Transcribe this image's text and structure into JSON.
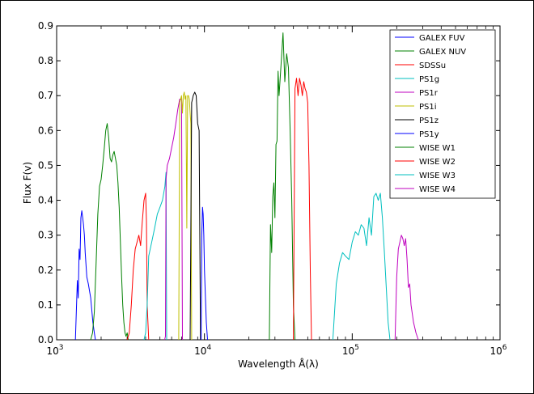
{
  "chart_data": {
    "type": "line",
    "title": "",
    "xlabel": "Wavelength Å(λ)",
    "ylabel": "Flux F(v)",
    "xscale": "log",
    "xlim": [
      1000,
      1000000
    ],
    "ylim": [
      0,
      0.9
    ],
    "x_ticks": [
      1000,
      10000,
      100000,
      1000000
    ],
    "x_tick_labels": [
      {
        "base": "10",
        "exp": "3"
      },
      {
        "base": "10",
        "exp": "4"
      },
      {
        "base": "10",
        "exp": "5"
      },
      {
        "base": "10",
        "exp": "6"
      }
    ],
    "y_ticks": [
      0.0,
      0.1,
      0.2,
      0.3,
      0.4,
      0.5,
      0.6,
      0.7,
      0.8,
      0.9
    ],
    "y_tick_labels": [
      "0.0",
      "0.1",
      "0.2",
      "0.3",
      "0.4",
      "0.5",
      "0.6",
      "0.7",
      "0.8",
      "0.9"
    ],
    "grid": false,
    "legend_position": "top-right",
    "series": [
      {
        "name": "GALEX FUV",
        "color": "#0000ff",
        "x": [
          1340,
          1380,
          1400,
          1420,
          1440,
          1460,
          1480,
          1500,
          1520,
          1540,
          1560,
          1600,
          1640,
          1700,
          1760,
          1800,
          1830
        ],
        "y": [
          0,
          0.17,
          0.12,
          0.26,
          0.23,
          0.35,
          0.37,
          0.35,
          0.33,
          0.3,
          0.25,
          0.18,
          0.16,
          0.12,
          0.05,
          0.02,
          0
        ]
      },
      {
        "name": "GALEX NUV",
        "color": "#008000",
        "x": [
          1700,
          1750,
          1800,
          1850,
          1900,
          1950,
          2000,
          2050,
          2100,
          2150,
          2200,
          2250,
          2300,
          2350,
          2400,
          2450,
          2500,
          2550,
          2600,
          2650,
          2700,
          2750,
          2800,
          2850,
          2900,
          2950,
          3000,
          3050
        ],
        "y": [
          0,
          0.02,
          0.08,
          0.22,
          0.36,
          0.44,
          0.46,
          0.5,
          0.55,
          0.6,
          0.62,
          0.58,
          0.52,
          0.51,
          0.53,
          0.54,
          0.52,
          0.5,
          0.45,
          0.38,
          0.28,
          0.18,
          0.1,
          0.05,
          0.02,
          0.01,
          0.02,
          0
        ]
      },
      {
        "name": "SDSSu",
        "color": "#ff0000",
        "x": [
          3000,
          3100,
          3200,
          3300,
          3400,
          3500,
          3600,
          3700,
          3800,
          3900,
          4000,
          4050,
          4100,
          4200
        ],
        "y": [
          0,
          0.02,
          0.1,
          0.2,
          0.26,
          0.28,
          0.3,
          0.27,
          0.34,
          0.4,
          0.42,
          0.34,
          0.1,
          0
        ]
      },
      {
        "name": "PS1g",
        "color": "#00bfbf",
        "x": [
          3900,
          4000,
          4100,
          4200,
          4400,
          4600,
          4800,
          5000,
          5200,
          5400,
          5500,
          5550
        ],
        "y": [
          0,
          0.02,
          0.1,
          0.24,
          0.28,
          0.32,
          0.36,
          0.38,
          0.4,
          0.44,
          0.48,
          0
        ]
      },
      {
        "name": "PS1r",
        "color": "#bf00bf",
        "x": [
          5380,
          5450,
          5500,
          5600,
          5800,
          6000,
          6200,
          6400,
          6600,
          6800,
          7000,
          7100
        ],
        "y": [
          0,
          0.01,
          0.46,
          0.5,
          0.52,
          0.55,
          0.58,
          0.62,
          0.66,
          0.69,
          0.69,
          0
        ]
      },
      {
        "name": "PS1i",
        "color": "#bfbf00",
        "x": [
          6700,
          6800,
          6900,
          7000,
          7100,
          7200,
          7300,
          7400,
          7500,
          7600,
          7700,
          7800,
          7900,
          8000,
          8100,
          8200
        ],
        "y": [
          0,
          0.68,
          0.69,
          0.7,
          0.65,
          0.7,
          0.71,
          0.69,
          0.7,
          0.32,
          0.7,
          0.7,
          0.69,
          0.65,
          0.62,
          0
        ]
      },
      {
        "name": "PS1z",
        "color": "#000000",
        "x": [
          8000,
          8200,
          8400,
          8600,
          8800,
          9000,
          9200,
          9400
        ],
        "y": [
          0,
          0.68,
          0.7,
          0.71,
          0.7,
          0.62,
          0.6,
          0
        ]
      },
      {
        "name": "PS1y",
        "color": "#0000ff",
        "x": [
          9500,
          9600,
          9700,
          9800,
          9900,
          10000,
          10300,
          10500
        ],
        "y": [
          0,
          0.3,
          0.38,
          0.36,
          0.3,
          0.2,
          0.05,
          0
        ]
      },
      {
        "name": "WISE W1",
        "color": "#008000",
        "x": [
          27500,
          28000,
          28500,
          29000,
          29500,
          30000,
          30500,
          31000,
          31500,
          32000,
          33000,
          34000,
          35000,
          36000,
          37000,
          38000,
          39000,
          40000,
          41000
        ],
        "y": [
          0,
          0.33,
          0.25,
          0.41,
          0.45,
          0.35,
          0.56,
          0.57,
          0.77,
          0.7,
          0.79,
          0.88,
          0.74,
          0.82,
          0.78,
          0.6,
          0.4,
          0.1,
          0
        ]
      },
      {
        "name": "WISE W2",
        "color": "#ff0000",
        "x": [
          40000,
          41000,
          42000,
          43000,
          44000,
          45000,
          46000,
          47000,
          48000,
          49000,
          50000,
          51000,
          52000,
          53000
        ],
        "y": [
          0,
          0.72,
          0.75,
          0.7,
          0.75,
          0.73,
          0.7,
          0.74,
          0.72,
          0.71,
          0.68,
          0.5,
          0.2,
          0
        ]
      },
      {
        "name": "WISE W3",
        "color": "#00bfbf",
        "x": [
          74000,
          78000,
          82000,
          86000,
          90000,
          95000,
          100000,
          105000,
          110000,
          115000,
          120000,
          125000,
          130000,
          135000,
          140000,
          145000,
          150000,
          155000,
          160000,
          165000,
          170000,
          175000,
          180000
        ],
        "y": [
          0,
          0.16,
          0.22,
          0.25,
          0.24,
          0.23,
          0.28,
          0.31,
          0.3,
          0.33,
          0.32,
          0.27,
          0.35,
          0.3,
          0.41,
          0.42,
          0.4,
          0.42,
          0.35,
          0.25,
          0.15,
          0.05,
          0
        ]
      },
      {
        "name": "WISE W4",
        "color": "#bf00bf",
        "x": [
          195000,
          200000,
          205000,
          210000,
          215000,
          220000,
          225000,
          230000,
          235000,
          240000,
          245000,
          250000,
          260000,
          270000,
          280000
        ],
        "y": [
          0,
          0.18,
          0.26,
          0.28,
          0.3,
          0.29,
          0.27,
          0.29,
          0.23,
          0.15,
          0.16,
          0.1,
          0.05,
          0.02,
          0
        ]
      }
    ]
  }
}
